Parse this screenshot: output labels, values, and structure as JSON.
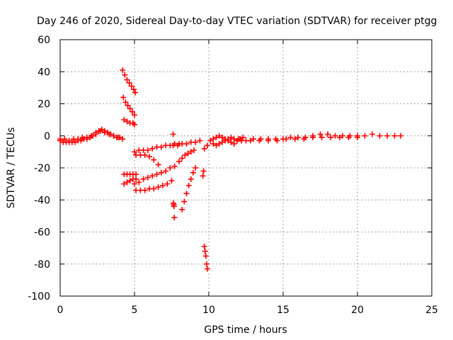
{
  "chart_data": {
    "type": "scatter",
    "title": "Day 246 of 2020, Sidereal Day-to-day VTEC variation (SDTVAR) for receiver ptgg",
    "xlabel": "GPS time / hours",
    "ylabel": "SDTVAR / TECUs",
    "xlim": [
      0,
      25
    ],
    "ylim": [
      -100,
      60
    ],
    "xticks": [
      0,
      5,
      10,
      15,
      20,
      25
    ],
    "yticks": [
      -100,
      -80,
      -60,
      -40,
      -20,
      0,
      20,
      40,
      60
    ],
    "xtick_labels": [
      "0",
      "5",
      "10",
      "15",
      "20",
      "25"
    ],
    "ytick_labels": [
      "-100",
      "-80",
      "-60",
      "-40",
      "-20",
      "0",
      "20",
      "40",
      "60"
    ],
    "grid": true,
    "marker": "+",
    "color": "#ff0000",
    "series": [
      {
        "name": "arc-main-left",
        "x": [
          0.0,
          0.2,
          0.4,
          0.6,
          0.8,
          1.0,
          1.2,
          1.4,
          1.6,
          1.8,
          2.0,
          2.2,
          2.4,
          2.6,
          2.8,
          3.0,
          3.2,
          3.4,
          3.6,
          3.8,
          4.0,
          4.2
        ],
        "y": [
          -3,
          -4,
          -4,
          -4,
          -4,
          -4,
          -3,
          -3,
          -2,
          -2,
          -1,
          0,
          1,
          3,
          4,
          3,
          2,
          1,
          0,
          -1,
          -1,
          -2
        ]
      },
      {
        "name": "arc-main-left-upper",
        "x": [
          0.0,
          0.3,
          0.6,
          0.9,
          1.2,
          1.5,
          1.8,
          2.1,
          2.4,
          2.7,
          3.0,
          3.3,
          3.6,
          3.9
        ],
        "y": [
          -2,
          -2,
          -3,
          -2,
          -2,
          -1,
          -1,
          0,
          2,
          3,
          2,
          1,
          0,
          -1
        ]
      },
      {
        "name": "steep-high",
        "x": [
          4.2,
          4.35,
          4.5,
          4.65,
          4.8,
          4.95,
          5.05
        ],
        "y": [
          41,
          38,
          35,
          33,
          31,
          29,
          27
        ]
      },
      {
        "name": "steep-mid",
        "x": [
          4.25,
          4.4,
          4.55,
          4.7,
          4.85,
          5.0
        ],
        "y": [
          24,
          21,
          19,
          17,
          15,
          13
        ]
      },
      {
        "name": "short-mid",
        "x": [
          4.3,
          4.5,
          4.7,
          4.9,
          5.0
        ],
        "y": [
          10,
          9,
          8,
          8,
          7
        ]
      },
      {
        "name": "low-left-a",
        "x": [
          4.3,
          4.5,
          4.7,
          4.9,
          5.1
        ],
        "y": [
          -24,
          -24,
          -24,
          -24,
          -24
        ]
      },
      {
        "name": "low-left-b",
        "x": [
          4.3,
          4.5,
          4.7,
          4.9,
          5.1
        ],
        "y": [
          -30,
          -29,
          -28,
          -27,
          -27
        ]
      },
      {
        "name": "arc-upper-5-7",
        "x": [
          5.0,
          5.3,
          5.6,
          5.9,
          6.2,
          6.5,
          6.8,
          7.1,
          7.4,
          7.7,
          8.0
        ],
        "y": [
          -10,
          -9,
          -9,
          -9,
          -8,
          -7,
          -7,
          -6,
          -6,
          -5,
          -5
        ]
      },
      {
        "name": "arc-descend-5-6",
        "x": [
          5.1,
          5.4,
          5.7,
          6.0,
          6.3,
          6.6
        ],
        "y": [
          -12,
          -12,
          -12,
          -13,
          -15,
          -18
        ]
      },
      {
        "name": "arc-neg20-30",
        "x": [
          5.0,
          5.3,
          5.6,
          5.9,
          6.2,
          6.5,
          6.8,
          7.1,
          7.4,
          7.7
        ],
        "y": [
          -30,
          -29,
          -27,
          -26,
          -25,
          -24,
          -23,
          -22,
          -20,
          -19
        ]
      },
      {
        "name": "arc-neg33",
        "x": [
          5.1,
          5.4,
          5.7,
          6.0,
          6.3,
          6.6,
          6.9,
          7.2,
          7.5
        ],
        "y": [
          -34,
          -34,
          -34,
          -33,
          -33,
          -32,
          -31,
          -30,
          -28
        ]
      },
      {
        "name": "arc-7-9-upper",
        "x": [
          7.6,
          7.9,
          8.2,
          8.5,
          8.8,
          9.1,
          9.4
        ],
        "y": [
          -6,
          -6,
          -5,
          -5,
          -4,
          -4,
          -3
        ]
      },
      {
        "name": "drop-7.6",
        "x": [
          7.6,
          7.62,
          7.64,
          7.66,
          7.68
        ],
        "y": [
          1,
          -42,
          -43,
          -44,
          -51
        ]
      },
      {
        "name": "steep-8-9",
        "x": [
          8.2,
          8.35,
          8.5,
          8.65,
          8.8,
          8.95,
          9.1
        ],
        "y": [
          -46,
          -41,
          -36,
          -31,
          -27,
          -23,
          -20
        ]
      },
      {
        "name": "arc-8-9-mid",
        "x": [
          8.0,
          8.2,
          8.4,
          8.6,
          8.8,
          9.0
        ],
        "y": [
          -16,
          -14,
          -12,
          -11,
          -10,
          -9
        ]
      },
      {
        "name": "drop-9.8",
        "x": [
          9.6,
          9.65,
          9.7,
          9.75,
          9.8,
          9.85,
          9.9
        ],
        "y": [
          -25,
          -22,
          -69,
          -72,
          -75,
          -80,
          -83
        ]
      },
      {
        "name": "arc-10-12",
        "x": [
          9.7,
          9.9,
          10.1,
          10.3,
          10.5,
          10.7,
          10.9,
          11.1,
          11.3,
          11.5,
          11.7,
          11.9
        ],
        "y": [
          -8,
          -6,
          -3,
          -5,
          -6,
          -5,
          -4,
          -3,
          -2,
          -1,
          -2,
          -3
        ]
      },
      {
        "name": "cluster-11",
        "x": [
          10.3,
          10.5,
          10.7,
          10.9,
          11.1,
          11.3,
          11.5,
          11.7,
          11.9,
          12.1,
          12.3
        ],
        "y": [
          -2,
          -1,
          0,
          -1,
          -2,
          -3,
          -4,
          -5,
          -3,
          -2,
          -1
        ]
      },
      {
        "name": "flat-12-23",
        "x": [
          12.0,
          12.5,
          13.0,
          13.5,
          14.0,
          14.5,
          15.0,
          15.5,
          16.0,
          16.5,
          17.0,
          17.5,
          18.0,
          18.5,
          19.0,
          19.5,
          20.0,
          20.5,
          21.0,
          21.5,
          22.0,
          22.5,
          22.9
        ],
        "y": [
          -2,
          -3,
          -2,
          -2,
          -2,
          -2,
          -2,
          -1,
          -1,
          -1,
          0,
          1,
          1,
          0,
          0,
          0,
          0,
          0,
          1,
          0,
          0,
          0,
          0
        ]
      },
      {
        "name": "flat-12-23-lower",
        "x": [
          12.2,
          12.8,
          13.4,
          14.0,
          14.6,
          15.2,
          15.8,
          16.4,
          17.0,
          17.6,
          18.2,
          18.8,
          19.4,
          20.0
        ],
        "y": [
          -3,
          -3,
          -3,
          -3,
          -3,
          -2,
          -2,
          -2,
          -1,
          -1,
          -1,
          -1,
          -1,
          -1
        ]
      }
    ]
  }
}
